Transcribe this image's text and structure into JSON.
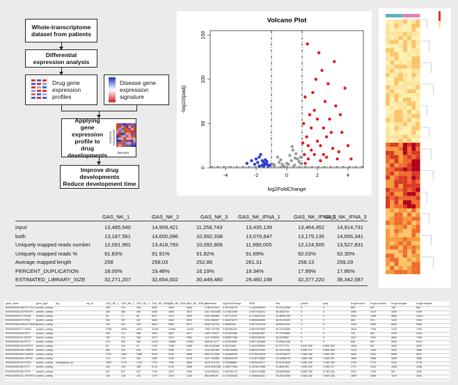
{
  "flowchart": {
    "step1": "Whole-transcriptome\ndataset from patients",
    "step2": "Differential\nexpression analysis",
    "step3a": "Drug gene\nexpression\nprofiles",
    "step3b": "Disease gene\nexpression\nsignature",
    "step4": "Applying gene\nexpression\nprofile to drug\ndevelopments",
    "step4_side_label": "DISEASE\nSIGNATURE",
    "step4_bottom_label": "DRUGS",
    "step5": "Improve drug developments\nReduce development time"
  },
  "volcano": {
    "chart_data": {
      "type": "scatter",
      "title": "Volcano Plot",
      "xlabel": "log2FoldChange",
      "ylabel": "-log10(padj)",
      "xlim": [
        -5,
        5
      ],
      "ylim": [
        0,
        155
      ],
      "xticks": [
        "-4",
        "-2",
        "0",
        "2",
        "4"
      ],
      "yticks": [
        "0",
        "50",
        "100",
        "150"
      ],
      "thresholds": {
        "log2fc": [
          -1,
          1
        ],
        "padj_line": 1.3
      },
      "series": [
        {
          "color": "#2b3bd6",
          "points": [
            [
              -1.6,
              3
            ],
            [
              -2.0,
              10
            ],
            [
              -1.8,
              12
            ],
            [
              -1.5,
              6
            ],
            [
              -2.3,
              8
            ],
            [
              -1.3,
              4
            ],
            [
              -1.9,
              6
            ],
            [
              -1.4,
              9
            ],
            [
              -1.2,
              2
            ],
            [
              -2.6,
              5
            ],
            [
              -1.7,
              15
            ],
            [
              -1.1,
              3
            ],
            [
              -1.5,
              2
            ],
            [
              -2.1,
              4
            ],
            [
              -1.3,
              7
            ],
            [
              -1.8,
              2
            ],
            [
              -1.6,
              8
            ],
            [
              -1.4,
              4
            ]
          ]
        },
        {
          "color": "#999999",
          "points": [
            [
              -0.8,
              3
            ],
            [
              -0.5,
              6
            ],
            [
              -0.2,
              2
            ],
            [
              0.1,
              4
            ],
            [
              0.3,
              8
            ],
            [
              0.5,
              3
            ],
            [
              0.7,
              10
            ],
            [
              0.9,
              5
            ],
            [
              -0.6,
              12
            ],
            [
              0.2,
              14
            ],
            [
              -0.4,
              9
            ],
            [
              0.6,
              16
            ],
            [
              0.8,
              7
            ],
            [
              -0.9,
              4
            ],
            [
              0.4,
              20
            ],
            [
              0.0,
              5
            ],
            [
              -0.3,
              4
            ],
            [
              0.9,
              12
            ],
            [
              0.35,
              24
            ],
            [
              0.55,
              11
            ]
          ]
        },
        {
          "color": "#e61919",
          "points": [
            [
              1.2,
              5
            ],
            [
              1.4,
              10
            ],
            [
              1.6,
              20
            ],
            [
              1.8,
              15
            ],
            [
              2.0,
              30
            ],
            [
              2.2,
              8
            ],
            [
              2.4,
              45
            ],
            [
              2.6,
              12
            ],
            [
              2.8,
              55
            ],
            [
              3.0,
              22
            ],
            [
              3.2,
              70
            ],
            [
              3.4,
              18
            ],
            [
              3.6,
              40
            ],
            [
              3.8,
              90
            ],
            [
              1.3,
              35
            ],
            [
              1.5,
              60
            ],
            [
              1.7,
              85
            ],
            [
              1.9,
              100
            ],
            [
              2.1,
              130
            ],
            [
              2.3,
              110
            ],
            [
              2.5,
              75
            ],
            [
              2.7,
              95
            ],
            [
              2.9,
              40
            ],
            [
              3.1,
              120
            ],
            [
              1.1,
              50
            ],
            [
              1.2,
              80
            ],
            [
              1.4,
              25
            ],
            [
              1.6,
              45
            ],
            [
              1.8,
              65
            ],
            [
              2.0,
              55
            ],
            [
              2.2,
              25
            ],
            [
              2.4,
              15
            ],
            [
              3.5,
              60
            ],
            [
              4.0,
              25
            ],
            [
              4.2,
              10
            ],
            [
              1.15,
              15
            ],
            [
              1.05,
              28
            ],
            [
              1.35,
              140
            ],
            [
              2.6,
              35
            ],
            [
              3.3,
              10
            ]
          ]
        }
      ]
    }
  },
  "heatmap": {
    "chart_data": {
      "type": "heatmap",
      "rows": 62,
      "cols": 8,
      "colors": {
        "high": "#b3001b",
        "mid": "#f79a3b",
        "low": "#fff2b0"
      }
    }
  },
  "stats_table": {
    "headers": [
      "GAS_NK_1",
      "GAS_NK_2",
      "GAS_NK_3",
      "GAS_NK_IFNA_1",
      "GAS_NK_IFNA_2",
      "GAS_NK_IFNA_3"
    ],
    "rows": [
      {
        "label": "input",
        "values": [
          "13,485,540",
          "14,909,421",
          "11,258,743",
          "13,435,139",
          "13,464,452",
          "14,914,731"
        ]
      },
      {
        "label": "both",
        "values": [
          "13,187,561",
          "14,600,096",
          "10,992,338",
          "13,076,647",
          "13,175,135",
          "14,656,341"
        ]
      },
      {
        "label": "Uniquely mapped reads number",
        "values": [
          "12,091,991",
          "13,418,793",
          "10,092,806",
          "11,990,005",
          "12,124,505",
          "13,527,831"
        ]
      },
      {
        "label": "Uniquely mapped reads %",
        "values": [
          "91.83%",
          "91.91%",
          "91.82%",
          "91.69%",
          "92.03%",
          "92.30%"
        ]
      },
      {
        "label": "Average mapped length",
        "values": [
          "258",
          "258.03",
          "252.86",
          "261.31",
          "258.13",
          "259.29"
        ]
      },
      {
        "label": "PERCENT_DUPLICATION",
        "values": [
          "18.00%",
          "19.48%",
          "16.19%",
          "19.34%",
          "17.99%",
          "17.86%"
        ]
      },
      {
        "label": "ESTIMATED_LIBRARY_SIZE",
        "values": [
          "32,271,207",
          "32,654,002",
          "30,449,480",
          "29,460,198",
          "32,377,220",
          "36,342,087"
        ]
      }
    ]
  },
  "data_table": {
    "headers": [
      "gene_name",
      "gene_type",
      "tag",
      "mp_id",
      "GAS_NK_1",
      "GAS_NK_2",
      "GAS_NK_3",
      "GAS_NK_IFNA_1",
      "GAS_NK_IFNA_2",
      "GAS_NK_IFNA_3",
      "baseMean",
      "log2FoldChange",
      "lfcSE",
      "stat",
      "pvalue",
      "padj",
      "length.mean",
      "length.median",
      "length.longest",
      "length.merged"
    ],
    "rows": [
      [
        "ENSG00000198712 CCL5",
        "protein_coding",
        "-",
        "",
        "258",
        "274",
        "296",
        "4082",
        "4900",
        "5284",
        "2789.307514",
        "4.397328778",
        "0.1357899494",
        "32.22123055",
        "0",
        "0",
        "863",
        "937",
        "786",
        "882"
      ],
      [
        "ENSG00000126709 IFI6",
        "protein_coding",
        "-",
        "",
        "426",
        "482",
        "300",
        "4480",
        "4380",
        "4873",
        "2517.4923455",
        "3.473813059",
        "0.0877162021",
        "39.4833738",
        "0",
        "0",
        "3090",
        "3119",
        "3209",
        "3155"
      ],
      [
        "ENSG00000137.IFI44L",
        "protein_coding",
        "-",
        "",
        "26",
        "27",
        "26",
        "6247",
        "4374",
        "5029",
        "2287.696968",
        "7.357712287",
        "0.1728441234",
        "42.48467228",
        "0",
        "0",
        "1944",
        "1496",
        "5829",
        "11613"
      ],
      [
        "ENSG00000137.IFI44",
        "protein_coding",
        "-",
        "",
        "260",
        "257",
        "187",
        "4062",
        "4160",
        "4525",
        "2292.960607",
        "4.184575271",
        "0.0895908286",
        "46.90140323",
        "0",
        "0",
        "885",
        "919",
        "1182",
        "2038"
      ],
      [
        "ENSG00000145124 RSAD2",
        "protein_coding",
        "-",
        "",
        "319",
        "301",
        "235",
        "5623",
        "5505",
        "6271",
        "3043.142726",
        "4.36952061",
        "0.0974782218",
        "48.84511302",
        "0",
        "0",
        "2925",
        "3008",
        "6553",
        "5958"
      ],
      [
        "ENSG00000177 OAS3",
        "protein_coding",
        "-",
        "",
        "1766",
        "1605",
        "1614",
        "12181",
        "12383",
        "14134",
        "7262.727708",
        "2.902282294",
        "0.0627957859",
        "46.72102825",
        "0",
        "0",
        "2618",
        "7198",
        "7122",
        "7193"
      ],
      [
        "ENSG00000155 IFI27",
        "protein_coding",
        "-",
        "",
        "299",
        "271",
        "266",
        "4924",
        "4307",
        "4577",
        "2403.776377",
        "3.912611666",
        "0.1030823967",
        "37.75726063",
        "0",
        "0",
        "725",
        "652",
        "2439",
        "4144"
      ],
      [
        "ENSG00000111 ISG20",
        "protein_coding",
        "-",
        "",
        "187",
        "213",
        "156",
        "2672",
        "2301",
        "2581",
        "1437.878026",
        "3.805877358",
        "0.0902348392",
        "34.3229682",
        "0",
        "0",
        "1027",
        "1002",
        "5604",
        "7198"
      ],
      [
        "ENSG00000134 IFIT3",
        "protein_coding",
        "-",
        "",
        "374",
        "382",
        "362",
        "11307",
        "10588",
        "11060",
        "5625.671277",
        "4.923228461",
        "0.0677161858",
        "72.09811498",
        "0",
        "0",
        "808",
        "857",
        "4284",
        "9431"
      ],
      [
        "ENSG00000133 EPSTI1",
        "protein_coding",
        "-",
        "",
        "81",
        "116",
        "91",
        "1730",
        "1798",
        "2096",
        "981.5130286",
        "4.28732941",
        "0.1147025692",
        "37.3777775",
        "8.97E-308",
        "8.82E-303",
        "1049",
        "891",
        "4003",
        "4024"
      ],
      [
        "ENSG00000138 CMPK2",
        "protein_coding",
        "-",
        "",
        "390",
        "403",
        "289",
        "2207",
        "2089",
        "3117",
        "1026.387462",
        "2.936783606",
        "0.0833379494",
        "36.18110446",
        "3.68E-271",
        "3.80E-266",
        "1414",
        "1418",
        "3051",
        "4388"
      ],
      [
        "ENSG00000205 SAMD9",
        "protein_coding",
        "-",
        "",
        "1791",
        "1863",
        "1386",
        "9216",
        "9100",
        "9888",
        "5554.371948",
        "2.516668755",
        "0.0733378418",
        "34.30786372",
        "3.38E-258",
        "3.49E-253",
        "5639",
        "6754",
        "6698",
        "6930"
      ],
      [
        "ENSG00000184 USP18",
        "protein_coding",
        "-",
        "",
        "173",
        "174",
        "154",
        "2392",
        "2105",
        "2278",
        "1227.780356",
        "3.865834125",
        "0.1130770683",
        "34.18685725",
        "1.86E-256",
        "1.80E-251",
        "1656",
        "1656",
        "1656",
        "1656"
      ],
      [
        "ENSG00000115 STAT1",
        "protein_coding",
        "overlapping_loc",
        "",
        "2629",
        "2179",
        "1704",
        "7741",
        "7990",
        "8690",
        "5075.012126",
        "2.216986887",
        "0.0626416177",
        "33.92110645",
        "3.00E-256",
        "2.26E-236",
        "2753",
        "2719",
        "4134",
        "9778"
      ],
      [
        "ENSG00000182 IFIT1",
        "protein_coding",
        "-",
        "",
        "182",
        "216",
        "158",
        "5716",
        "5740",
        "5358",
        "3078.3287256",
        "2.359477846",
        "0.1321672986",
        "31.8811994",
        "1.93E-204",
        "2.05E-217",
        "1771",
        "1515",
        "4046",
        "4368"
      ],
      [
        "ENSG00000185 IFIH1",
        "protein_coding",
        "-",
        "",
        "897",
        "617",
        "512",
        "1794",
        "2037",
        "2394",
        "1216.450411",
        "2.461452173",
        "0.0622741888",
        "34.60993605",
        "9.66E-189",
        "8.74E-183",
        "2221",
        "2705",
        "591",
        "3296"
      ],
      [
        "ENSG00000121 TNFSF10",
        "protein_coding",
        "-",
        "",
        "140",
        "149",
        "126",
        "1775",
        "1193",
        "1230",
        "665.589978",
        "3.174429303",
        "0.1084661821",
        "29.26113845",
        "3.24E-188",
        "2.64E-183",
        "1659",
        "1659",
        "1676",
        "3441"
      ]
    ]
  }
}
